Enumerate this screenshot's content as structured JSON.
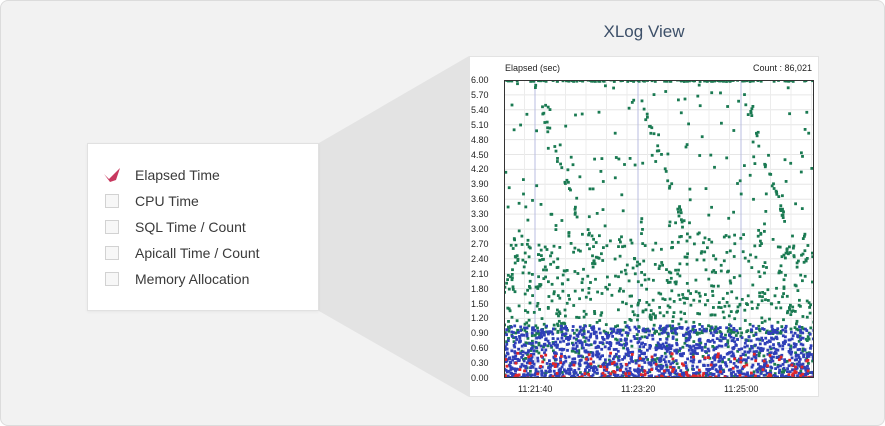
{
  "filter_menu": {
    "items": [
      {
        "label": "Elapsed Time",
        "checked": true
      },
      {
        "label": "CPU Time",
        "checked": false
      },
      {
        "label": "SQL Time / Count",
        "checked": false
      },
      {
        "label": "Apicall Time / Count",
        "checked": false
      },
      {
        "label": "Memory Allocation",
        "checked": false
      }
    ],
    "check_color": "#c8385f"
  },
  "xlog_view": {
    "title": "XLog View",
    "y_axis_label": "Elapsed (sec)",
    "count_label": "Count : 86,021",
    "title_color": "#3d5069"
  },
  "chart_data": {
    "type": "scatter",
    "ylabel": "Elapsed (sec)",
    "ylim": [
      0,
      6.0
    ],
    "y_ticks": [
      "6.00",
      "5.70",
      "5.40",
      "5.10",
      "4.80",
      "4.50",
      "4.20",
      "3.90",
      "3.60",
      "3.30",
      "3.00",
      "2.70",
      "2.40",
      "2.10",
      "1.80",
      "1.50",
      "1.20",
      "0.90",
      "0.60",
      "0.30",
      "0.00"
    ],
    "x_ticks": [
      "11:21:40",
      "11:23:20",
      "11:25:00"
    ],
    "count": 86021,
    "grid": true,
    "series_colors": {
      "normal_slow": "#1a7a52",
      "normal_fast": "#2f3fb8",
      "error": "#e0262a"
    }
  }
}
